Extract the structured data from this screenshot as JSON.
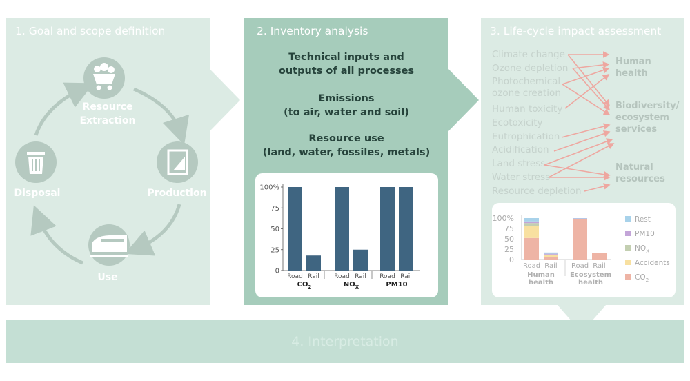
{
  "stage1": {
    "title": "1. Goal and scope definition",
    "nodes": {
      "resource_extraction": "Resource\nExtraction",
      "production": "Production",
      "use": "Use",
      "disposal": "Disposal"
    }
  },
  "stage2": {
    "title": "2. Inventory analysis",
    "items": [
      "Technical inputs and\noutputs of all processes",
      "Emissions\n(to air, water and soil)",
      "Resource use\n(land, water, fossiles, metals)"
    ]
  },
  "stage3": {
    "title": "3. Life-cycle impact assessment",
    "impacts": [
      "Climate change",
      "Ozone depletion",
      "Photochemical\nozone creation",
      "Human toxicity",
      "Ecotoxicity",
      "Eutrophication",
      "Acidification",
      "Land stress",
      "Water stress",
      "Resource depletion"
    ],
    "categories": [
      "Human\nhealth",
      "Biodiversity/\necosystem\nservices",
      "Natural\nresources"
    ]
  },
  "stage4": {
    "title": "4. Interpretation"
  },
  "colors": {
    "bar_dark": "#3f6581",
    "rest": "#a8d2ea",
    "pm10": "#c3a5d8",
    "nox": "#c3cfb1",
    "accidents": "#f8e0a0",
    "co2": "#eeb4a5",
    "arrow": "#eea7a0"
  },
  "chart_data": [
    {
      "type": "bar",
      "categories": [
        "Road",
        "Rail",
        "Road",
        "Rail",
        "Road",
        "Rail"
      ],
      "groups": [
        "CO2",
        "NOX",
        "PM10"
      ],
      "values": [
        100,
        18,
        100,
        25,
        100,
        100
      ],
      "ylim": [
        0,
        100
      ],
      "yticks": [
        "0",
        "25",
        "50",
        "75",
        "100%"
      ],
      "group_labels": [
        {
          "base": "CO",
          "sub": "2"
        },
        {
          "base": "NO",
          "sub": "X"
        },
        {
          "base": "PM10",
          "sub": ""
        }
      ]
    },
    {
      "type": "bar",
      "stacked": true,
      "groups": [
        "Human\nhealth",
        "Ecosystem\nhealth"
      ],
      "categories": [
        "Road",
        "Rail",
        "Road",
        "Rail"
      ],
      "ylim": [
        0,
        100
      ],
      "yticks": [
        "0",
        "25",
        "50",
        "75",
        "100%"
      ],
      "legend": [
        "Rest",
        "PM10",
        "NOx",
        "Accidents",
        "CO2"
      ],
      "legend_labels": [
        {
          "base": "Rest",
          "sub": ""
        },
        {
          "base": "PM10",
          "sub": ""
        },
        {
          "base": "NO",
          "sub": "X"
        },
        {
          "base": "Accidents",
          "sub": ""
        },
        {
          "base": "CO",
          "sub": "2"
        }
      ],
      "series": [
        {
          "name": "CO2",
          "values": [
            52,
            6,
            97,
            15
          ]
        },
        {
          "name": "Accidents",
          "values": [
            28,
            4,
            0,
            0
          ]
        },
        {
          "name": "NOx",
          "values": [
            8,
            2,
            1,
            0
          ]
        },
        {
          "name": "PM10",
          "values": [
            4,
            2,
            1,
            0
          ]
        },
        {
          "name": "Rest",
          "values": [
            8,
            3,
            1,
            0
          ]
        }
      ]
    }
  ]
}
